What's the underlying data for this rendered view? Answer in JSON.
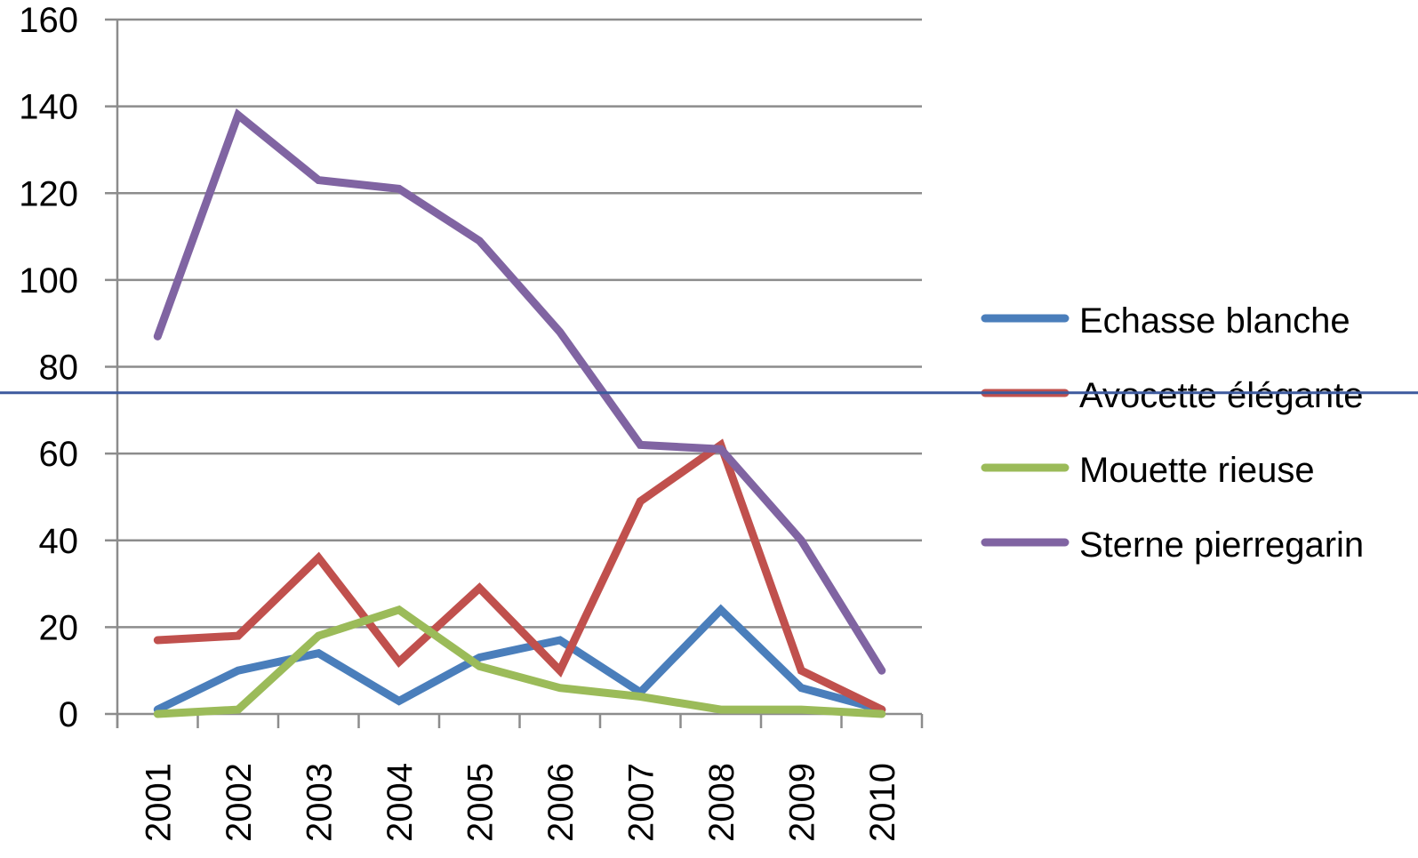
{
  "chart_data": {
    "type": "line",
    "title": "",
    "xlabel": "",
    "ylabel": "",
    "categories": [
      "2001",
      "2002",
      "2003",
      "2004",
      "2005",
      "2006",
      "2007",
      "2008",
      "2009",
      "2010"
    ],
    "y_ticks": [
      "0",
      "20",
      "40",
      "60",
      "80",
      "100",
      "120",
      "140",
      "160"
    ],
    "ylim": [
      0,
      160
    ],
    "grid": true,
    "legend_position": "right",
    "series": [
      {
        "name": "Echasse blanche",
        "color": "#4a7ebb",
        "values": [
          1,
          10,
          14,
          3,
          13,
          17,
          5,
          24,
          6,
          1
        ]
      },
      {
        "name": "Avocette élégante",
        "color": "#c0504d",
        "values": [
          17,
          18,
          36,
          12,
          29,
          10,
          49,
          62,
          10,
          1
        ]
      },
      {
        "name": "Mouette rieuse",
        "color": "#9bbb59",
        "values": [
          0,
          1,
          18,
          24,
          11,
          6,
          4,
          1,
          1,
          0
        ]
      },
      {
        "name": "Sterne pierregarin",
        "color": "#8064a2",
        "values": [
          87,
          138,
          123,
          121,
          109,
          88,
          62,
          61,
          40,
          10
        ]
      }
    ],
    "reference_line": {
      "color": "#3d5a9e",
      "value": 74
    }
  }
}
